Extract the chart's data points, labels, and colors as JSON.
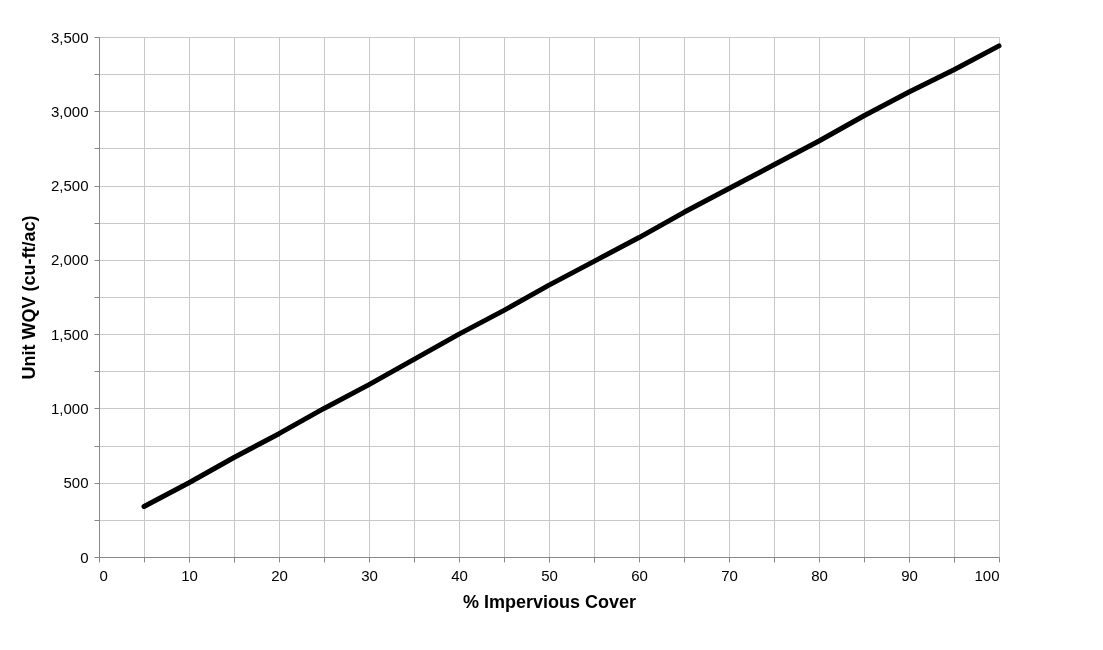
{
  "chart_data": {
    "type": "line",
    "xlabel": "% Impervious Cover",
    "ylabel": "Unit WQV (cu-ft/ac)",
    "x": [
      5,
      10,
      15,
      20,
      25,
      30,
      35,
      40,
      45,
      50,
      55,
      60,
      65,
      70,
      75,
      80,
      85,
      90,
      95,
      100
    ],
    "series": [
      {
        "color": "#000000",
        "values": [
          340,
          500,
          670,
          830,
          1000,
          1160,
          1330,
          1500,
          1660,
          1830,
          1990,
          2150,
          2320,
          2480,
          2640,
          2800,
          2970,
          3130,
          3280,
          3440
        ]
      }
    ],
    "xlim": [
      0,
      100
    ],
    "xticks": [
      0,
      {
        "value": 5,
        "label": null
      },
      10,
      {
        "value": 15,
        "label": null
      },
      20,
      {
        "value": 25,
        "label": null
      },
      30,
      {
        "value": 35,
        "label": null
      },
      40,
      {
        "value": 45,
        "label": null
      },
      50,
      {
        "value": 55,
        "label": null
      },
      60,
      {
        "value": 65,
        "label": null
      },
      70,
      {
        "value": 75,
        "label": null
      },
      80,
      {
        "value": 85,
        "label": null
      },
      90,
      {
        "value": 95,
        "label": null
      },
      100
    ],
    "ylim": [
      0,
      3500
    ],
    "yticks": [
      0,
      {
        "value": 250,
        "label": null
      },
      500,
      {
        "value": 750,
        "label": null
      },
      {
        "value": 1000,
        "label": "1,000"
      },
      {
        "value": 1250,
        "label": null
      },
      {
        "value": 1500,
        "label": "1,500"
      },
      {
        "value": 1750,
        "label": null
      },
      {
        "value": 2000,
        "label": "2,000"
      },
      {
        "value": 2250,
        "label": null
      },
      {
        "value": 2500,
        "label": "2,500"
      },
      {
        "value": 2750,
        "label": null
      },
      {
        "value": 3000,
        "label": "3,000"
      },
      {
        "value": 3250,
        "label": null
      },
      {
        "value": 3500,
        "label": "3,500"
      }
    ],
    "grid": true,
    "marker": "none",
    "line_style": "solid"
  }
}
